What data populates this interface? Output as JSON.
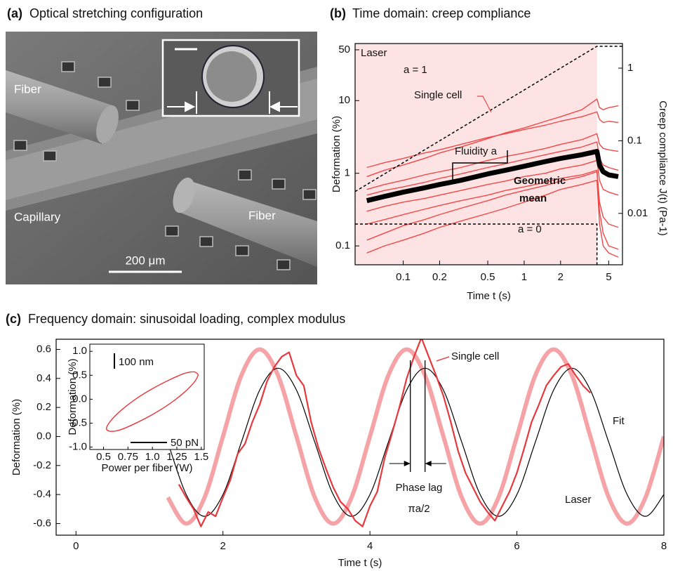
{
  "figure_a": {
    "panel_label": "(a)",
    "title": "Optical stretching configuration",
    "labels": [
      "Fiber",
      "Fiber",
      "Capillary"
    ],
    "scale_bar": "200 μm"
  },
  "chart_data": [
    {
      "type": "line",
      "panel_label": "(b)",
      "title": "Time domain: creep compliance",
      "xlabel": "Time t (s)",
      "ylabel": "Deformation (%)",
      "y2label": "Creep compliance J(t) (Pa-1)",
      "xscale": "log",
      "yscale": "log",
      "xlim": [
        0.04,
        6.5
      ],
      "ylim": [
        0.055,
        61
      ],
      "y2lim": [
        0.00196,
        2.18
      ],
      "xticks": [
        0.1,
        0.2,
        0.5,
        1,
        2,
        5
      ],
      "yticks": [
        0.1,
        1,
        10,
        50
      ],
      "y2ticks": [
        0.01,
        0.1,
        1
      ],
      "laser_off": 4,
      "annotations": [
        "Laser",
        "Single cell",
        "Fluidity a",
        "Geometric",
        "mean",
        "a = 1",
        "a = 0"
      ],
      "x": [
        0.05,
        0.07,
        0.1,
        0.15,
        0.2,
        0.3,
        0.5,
        0.7,
        1,
        1.5,
        2,
        3,
        4,
        4.2,
        4.5,
        5,
        6
      ],
      "series": [
        {
          "color": "#f04848",
          "values": [
            0.9,
            1.1,
            1.3,
            1.6,
            1.9,
            2.3,
            3.0,
            3.6,
            4.2,
            5.2,
            6.0,
            7.5,
            10.5,
            8,
            7.5,
            8,
            8.5
          ]
        },
        {
          "color": "#f04848",
          "values": [
            1.2,
            1.4,
            1.6,
            1.9,
            2.1,
            2.5,
            3.1,
            3.5,
            4.0,
            4.6,
            5.2,
            6.0,
            7.0,
            5.5,
            5.0,
            5.2,
            5.0
          ]
        },
        {
          "color": "#f04848",
          "values": [
            0.6,
            0.7,
            0.8,
            0.95,
            1.05,
            1.2,
            1.5,
            1.7,
            1.9,
            2.2,
            2.5,
            2.9,
            3.5,
            2.5,
            2.2,
            2.1,
            2.0
          ]
        },
        {
          "color": "#f04848",
          "values": [
            0.5,
            0.58,
            0.65,
            0.75,
            0.85,
            0.98,
            1.2,
            1.35,
            1.55,
            1.8,
            2.0,
            2.3,
            2.7,
            1.6,
            1.3,
            1.2,
            1.1
          ]
        },
        {
          "color": "#f04848",
          "values": [
            0.3,
            0.35,
            0.4,
            0.45,
            0.5,
            0.58,
            0.7,
            0.78,
            0.9,
            1.0,
            1.15,
            1.3,
            1.5,
            0.8,
            0.6,
            0.55,
            0.5
          ]
        },
        {
          "color": "#f04848",
          "values": [
            0.2,
            0.23,
            0.27,
            0.32,
            0.36,
            0.42,
            0.5,
            0.58,
            0.65,
            0.75,
            0.85,
            0.95,
            1.1,
            0.4,
            0.25,
            0.2,
            0.18
          ]
        },
        {
          "color": "#f04848",
          "values": [
            0.12,
            0.15,
            0.19,
            0.23,
            0.27,
            0.33,
            0.42,
            0.5,
            0.58,
            0.68,
            0.78,
            0.9,
            1.05,
            0.3,
            0.15,
            0.1,
            0.09
          ]
        },
        {
          "color": "#f04848",
          "values": [
            0.08,
            0.1,
            0.12,
            0.15,
            0.18,
            0.22,
            0.28,
            0.33,
            0.4,
            0.5,
            0.6,
            0.7,
            0.8,
            0.2,
            0.1,
            0.08,
            0.07
          ]
        },
        {
          "color": "#000000",
          "values": [
            0.42,
            0.48,
            0.55,
            0.63,
            0.7,
            0.8,
            0.98,
            1.1,
            1.25,
            1.45,
            1.6,
            1.8,
            2.0,
            1.3,
            1.05,
            0.95,
            0.9
          ]
        }
      ],
      "guides": [
        {
          "x": [
            0.04,
            4,
            6.5
          ],
          "values": [
            0.56,
            56,
            56
          ]
        },
        {
          "x": [
            0.04,
            4,
            4
          ],
          "values": [
            0.2,
            0.2,
            0.055
          ]
        }
      ]
    },
    {
      "type": "line",
      "panel_label": "(c)",
      "title": "Frequency domain: sinusoidal loading, complex modulus",
      "xlabel": "Time t (s)",
      "ylabel": "Deformation (%)",
      "xlim": [
        -0.27,
        8
      ],
      "ylim": [
        -0.68,
        0.67
      ],
      "xticks": [
        0,
        2,
        4,
        6,
        8
      ],
      "yticks": [
        -0.6,
        -0.4,
        -0.2,
        {
          "value": 0,
          "label": "0.0"
        },
        0.2,
        0.4,
        0.6
      ],
      "annotations": [
        "Phase lag",
        "πa/2"
      ],
      "phase_lag_marks": [
        4.55,
        4.75
      ],
      "series": [
        {
          "name": "Laser",
          "color": "#f5a3a6",
          "smooth": true,
          "x": [
            1.25,
            1.5,
            1.75,
            2,
            2.25,
            2.5,
            2.75,
            3,
            3.25,
            3.5,
            3.75,
            4,
            4.25,
            4.5,
            4.75,
            5,
            5.25,
            5.5,
            5.75,
            6,
            6.25,
            6.5,
            6.75,
            7,
            7.25,
            7.5,
            7.75,
            8
          ],
          "values": [
            -0.42,
            -0.6,
            -0.42,
            0,
            0.42,
            0.6,
            0.42,
            0,
            -0.42,
            -0.6,
            -0.42,
            0,
            0.42,
            0.6,
            0.42,
            0,
            -0.42,
            -0.6,
            -0.42,
            0,
            0.42,
            0.6,
            0.42,
            0,
            -0.42,
            -0.6,
            -0.42,
            0
          ]
        },
        {
          "name": "Fit",
          "color": "#000000",
          "smooth": true,
          "x": [
            1.25,
            1.5,
            1.75,
            2,
            2.25,
            2.5,
            2.75,
            3,
            3.25,
            3.5,
            3.75,
            4,
            4.25,
            4.5,
            4.75,
            5,
            5.25,
            5.5,
            5.75,
            6,
            6.25,
            6.5,
            6.75,
            7,
            7.25,
            7.5,
            7.75,
            8
          ],
          "values": [
            -0.04,
            -0.4,
            -0.55,
            -0.4,
            -0.04,
            0.32,
            0.47,
            0.32,
            -0.04,
            -0.4,
            -0.55,
            -0.4,
            -0.04,
            0.32,
            0.47,
            0.32,
            -0.04,
            -0.4,
            -0.55,
            -0.4,
            -0.04,
            0.32,
            0.47,
            0.32,
            -0.04,
            -0.4,
            -0.55,
            -0.4
          ]
        },
        {
          "name": "Single cell",
          "color": "#e8383d",
          "smooth": false,
          "x": [
            1.4,
            1.5,
            1.6,
            1.7,
            1.8,
            1.9,
            2.0,
            2.1,
            2.2,
            2.3,
            2.4,
            2.5,
            2.6,
            2.7,
            2.8,
            2.9,
            3.0,
            3.1,
            3.2,
            3.3,
            3.4,
            3.5,
            3.6,
            3.7,
            3.8,
            3.9,
            4.0,
            4.1,
            4.2,
            4.3,
            4.4,
            4.5,
            4.6,
            4.7,
            4.8,
            4.9,
            5.0,
            5.1,
            5.2,
            5.3,
            5.4,
            5.5,
            5.6,
            5.7,
            5.8,
            5.9,
            6.0,
            6.1,
            6.2,
            6.3,
            6.4,
            6.5,
            6.6,
            6.7,
            6.8,
            6.9,
            7.0
          ],
          "values": [
            -0.33,
            -0.42,
            -0.5,
            -0.62,
            -0.52,
            -0.55,
            -0.42,
            -0.3,
            -0.12,
            -0.05,
            0.1,
            0.22,
            0.38,
            0.48,
            0.55,
            0.58,
            0.42,
            0.35,
            0.1,
            -0.08,
            -0.22,
            -0.35,
            -0.45,
            -0.5,
            -0.58,
            -0.62,
            -0.48,
            -0.38,
            -0.15,
            0.02,
            0.2,
            0.4,
            0.55,
            0.68,
            0.55,
            0.42,
            0.28,
            0.1,
            -0.1,
            -0.25,
            -0.35,
            -0.45,
            -0.52,
            -0.58,
            -0.48,
            -0.38,
            -0.25,
            -0.08,
            0.1,
            0.22,
            0.35,
            0.42,
            0.48,
            0.5,
            0.42,
            0.35,
            0.3
          ]
        }
      ]
    },
    {
      "type": "line",
      "xlabel": "Power per fiber (W)",
      "ylabel": "Deformation (%)",
      "xlim": [
        0.36,
        1.53
      ],
      "ylim": [
        -1.05,
        1.15
      ],
      "xticks": [
        0.5,
        0.75,
        {
          "value": 1,
          "label": "1.0"
        },
        1.25,
        1.5
      ],
      "yticks": [
        {
          "value": -1,
          "label": "-1.0"
        },
        -0.5,
        {
          "value": 0,
          "label": "0.0"
        },
        0.5,
        {
          "value": 1,
          "label": "1.0"
        }
      ],
      "scale_bars": [
        "100 nm",
        "50 pN"
      ],
      "series": [
        {
          "color": "#e8383d",
          "smooth": true,
          "x": [
            1.47,
            1.43,
            1.33,
            1.18,
            1.0,
            0.82,
            0.67,
            0.57,
            0.53,
            0.57,
            0.67,
            0.82,
            1.0,
            1.18,
            1.33,
            1.43,
            1.47
          ],
          "values": [
            0.51,
            0.57,
            0.54,
            0.41,
            0.22,
            -0.01,
            -0.25,
            -0.46,
            -0.61,
            -0.67,
            -0.64,
            -0.51,
            -0.32,
            -0.09,
            0.15,
            0.36,
            0.51
          ]
        }
      ]
    }
  ]
}
